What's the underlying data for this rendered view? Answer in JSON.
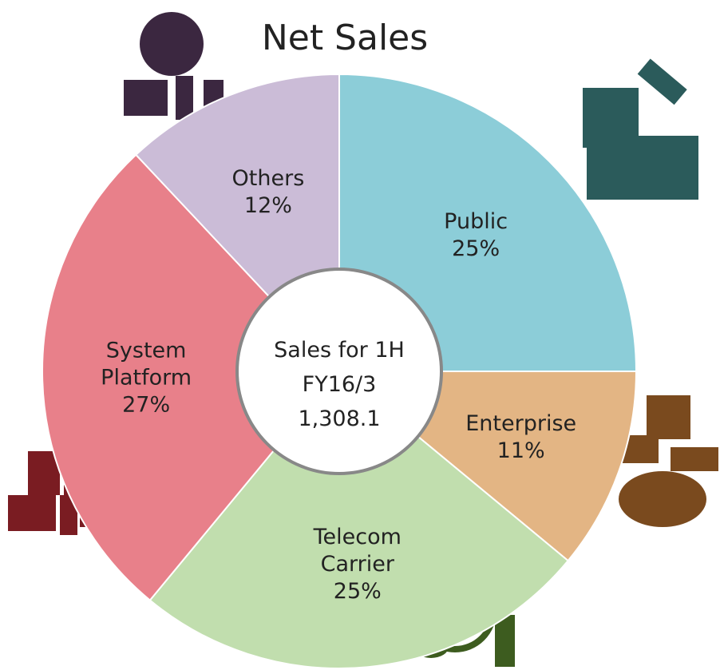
{
  "chart_data": {
    "type": "pie",
    "title": "Net Sales",
    "categories": [
      "Public",
      "Enterprise",
      "Telecom Carrier",
      "System Platform",
      "Others"
    ],
    "values": [
      25,
      11,
      25,
      27,
      12
    ],
    "value_labels": [
      "25%",
      "11%",
      "25%",
      "27%",
      "12%"
    ],
    "colors": [
      "#8ccdd8",
      "#e3b584",
      "#c1deae",
      "#e8808a",
      "#cbbcd7"
    ],
    "center_text": [
      "Sales for 1H",
      "FY16/3",
      "1,308.1"
    ]
  }
}
